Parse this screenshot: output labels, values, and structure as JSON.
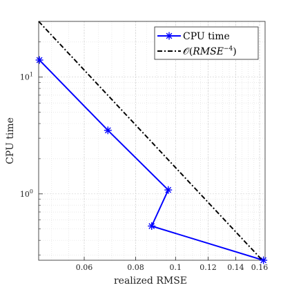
{
  "chart_data": {
    "type": "line",
    "title": "",
    "xlabel": "realized RMSE",
    "ylabel": "CPU time",
    "xscale": "log",
    "yscale": "log",
    "xlim": [
      0.0465,
      0.165
    ],
    "ylim": [
      0.27,
      30
    ],
    "grid": true,
    "legend_position": "top-right",
    "x_ticks": [
      {
        "value": 0.06,
        "label": "0.06"
      },
      {
        "value": 0.08,
        "label": "0.08"
      },
      {
        "value": 0.1,
        "label": "0.1"
      },
      {
        "value": 0.12,
        "label": "0.12"
      },
      {
        "value": 0.14,
        "label": "0.14"
      },
      {
        "value": 0.16,
        "label": "0.16"
      }
    ],
    "y_ticks": [
      {
        "value": 1,
        "base": "10",
        "exp": "0"
      },
      {
        "value": 10,
        "base": "10",
        "exp": "1"
      }
    ],
    "series": [
      {
        "name": "CPU time",
        "color": "#0000ff",
        "style": "solid",
        "marker": "asterisk",
        "points": [
          {
            "x": 0.0467,
            "y": 14.0
          },
          {
            "x": 0.0685,
            "y": 3.5
          },
          {
            "x": 0.096,
            "y": 1.08
          },
          {
            "x": 0.0875,
            "y": 0.53
          },
          {
            "x": 0.1635,
            "y": 0.27
          }
        ]
      },
      {
        "name": "O(RMSE^-4)",
        "legend_parts": [
          "𝒪(",
          "RMSE",
          "−4",
          ")"
        ],
        "color": "#000000",
        "style": "dashdot",
        "marker": "none",
        "points": [
          {
            "x": 0.0465,
            "y": 30.0
          },
          {
            "x": 0.1625,
            "y": 0.27
          }
        ]
      }
    ]
  }
}
